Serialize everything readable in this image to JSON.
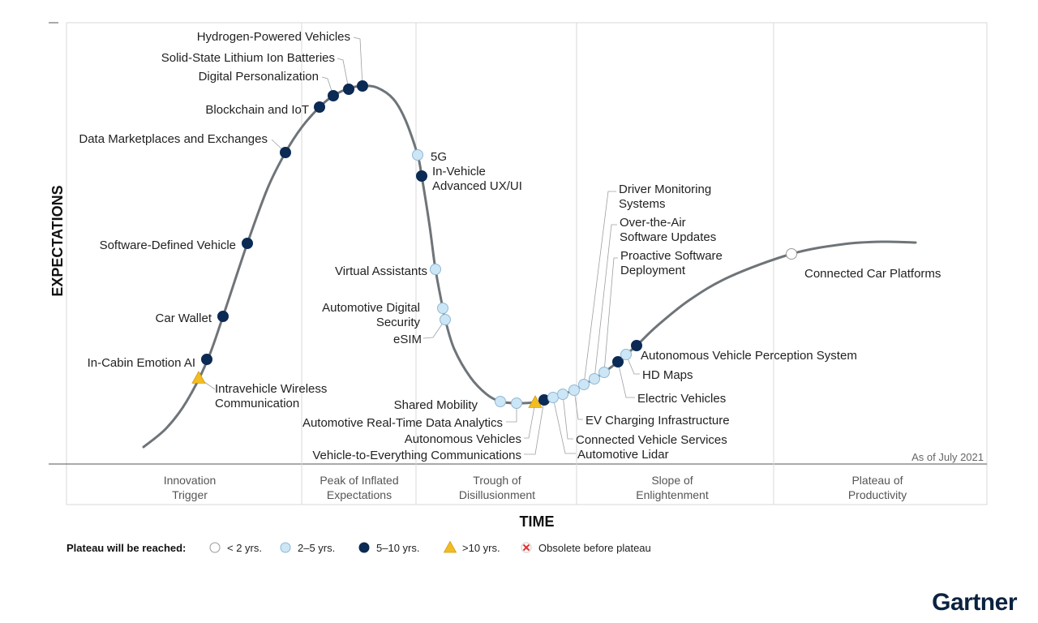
{
  "chart_data": {
    "type": "scatter",
    "subtype": "hype-cycle",
    "xlabel": "TIME",
    "ylabel": "EXPECTATIONS",
    "as_of": "As of July 2021",
    "phases": [
      {
        "label": [
          "Innovation",
          "Trigger"
        ]
      },
      {
        "label": [
          "Peak of Inflated",
          "Expectations"
        ]
      },
      {
        "label": [
          "Trough of",
          "Disillusionment"
        ]
      },
      {
        "label": [
          "Slope of",
          "Enlightenment"
        ]
      },
      {
        "label": [
          "Plateau of",
          "Productivity"
        ]
      }
    ],
    "legend": {
      "title": "Plateau will be reached:",
      "items": [
        {
          "key": "lt2",
          "label": "< 2 yrs.",
          "marker": "white-circle"
        },
        {
          "key": "2to5",
          "label": "2–5 yrs.",
          "marker": "light-blue-circle"
        },
        {
          "key": "5to10",
          "label": "5–10 yrs.",
          "marker": "navy-circle"
        },
        {
          "key": "gt10",
          "label": ">10 yrs.",
          "marker": "yellow-triangle"
        },
        {
          "key": "obsolete",
          "label": "Obsolete before plateau",
          "marker": "red-x"
        }
      ]
    },
    "technologies": [
      {
        "name": [
          "In-Cabin Emotion AI"
        ],
        "category": "5to10"
      },
      {
        "name": [
          "Intravehicle Wireless",
          "Communication"
        ],
        "category": "gt10"
      },
      {
        "name": [
          "Car Wallet"
        ],
        "category": "5to10"
      },
      {
        "name": [
          "Software-Defined Vehicle"
        ],
        "category": "5to10"
      },
      {
        "name": [
          "Data Marketplaces and Exchanges"
        ],
        "category": "5to10"
      },
      {
        "name": [
          "Blockchain and IoT"
        ],
        "category": "5to10"
      },
      {
        "name": [
          "Digital Personalization"
        ],
        "category": "5to10"
      },
      {
        "name": [
          "Solid-State Lithium Ion Batteries"
        ],
        "category": "5to10"
      },
      {
        "name": [
          "Hydrogen-Powered Vehicles"
        ],
        "category": "5to10"
      },
      {
        "name": [
          "5G"
        ],
        "category": "2to5"
      },
      {
        "name": [
          "In-Vehicle",
          "Advanced UX/UI"
        ],
        "category": "5to10"
      },
      {
        "name": [
          "Virtual Assistants"
        ],
        "category": "2to5"
      },
      {
        "name": [
          "Automotive Digital",
          "Security"
        ],
        "category": "2to5"
      },
      {
        "name": [
          "eSIM"
        ],
        "category": "2to5"
      },
      {
        "name": [
          "Shared Mobility"
        ],
        "category": "2to5"
      },
      {
        "name": [
          "Automotive Real-Time Data Analytics"
        ],
        "category": "2to5"
      },
      {
        "name": [
          "Autonomous Vehicles"
        ],
        "category": "gt10"
      },
      {
        "name": [
          "Vehicle-to-Everything Communications"
        ],
        "category": "5to10"
      },
      {
        "name": [
          "Automotive Lidar"
        ],
        "category": "2to5"
      },
      {
        "name": [
          "Connected Vehicle Services"
        ],
        "category": "2to5"
      },
      {
        "name": [
          "EV Charging Infrastructure"
        ],
        "category": "2to5"
      },
      {
        "name": [
          "Driver Monitoring",
          "Systems"
        ],
        "category": "2to5"
      },
      {
        "name": [
          "Over-the-Air",
          "Software Updates"
        ],
        "category": "2to5"
      },
      {
        "name": [
          "Proactive Software",
          "Deployment"
        ],
        "category": "2to5"
      },
      {
        "name": [
          "Electric Vehicles"
        ],
        "category": "5to10"
      },
      {
        "name": [
          "HD Maps"
        ],
        "category": "2to5"
      },
      {
        "name": [
          "Autonomous Vehicle Perception System"
        ],
        "category": "5to10"
      },
      {
        "name": [
          "Connected Car Platforms"
        ],
        "category": "lt2"
      }
    ]
  },
  "colors": {
    "curve": "#6e7478",
    "lt2": "#ffffff",
    "2to5": "#cde6f5",
    "5to10": "#0b2a54",
    "gt10": "#f2bd21",
    "obsolete": "#e03030",
    "brand": "#0b2240"
  },
  "brand": {
    "name": "Gartner"
  }
}
